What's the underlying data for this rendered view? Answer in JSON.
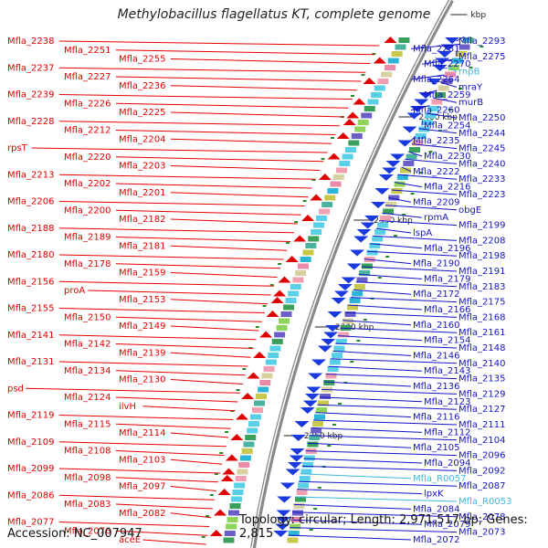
{
  "title": "Methylobacillus flagellatus KT, complete genome",
  "accession": "Accession: NC_007947",
  "topology": "Topology: circular; Length: 2,971,517 bp; Genes: 2,815",
  "colors": {
    "left": "#e60000",
    "right": "#1414c8",
    "rna": "#40b8e0",
    "backbone": "#8a8a8a",
    "tick": "#2a8a2a"
  },
  "ticks": [
    "kbp",
    "2400 kbp",
    "2350 kbp",
    "2300 kbp",
    "2250 kbp"
  ],
  "left_labels": [
    "Mfla_2238",
    "Mfla_2251",
    "Mfla_2255",
    "Mfla_2237",
    "Mfla_2227",
    "Mfla_2236",
    "Mfla_2239",
    "Mfla_2226",
    "Mfla_2225",
    "Mfla_2228",
    "Mfla_2212",
    "Mfla_2204",
    "rpsT",
    "Mfla_2220",
    "Mfla_2203",
    "Mfla_2213",
    "Mfla_2202",
    "Mfla_2201",
    "Mfla_2206",
    "Mfla_2200",
    "Mfla_2182",
    "Mfla_2188",
    "Mfla_2189",
    "Mfla_2181",
    "Mfla_2180",
    "Mfla_2178",
    "Mfla_2159",
    "Mfla_2156",
    "proA",
    "Mfla_2153",
    "Mfla_2155",
    "Mfla_2150",
    "Mfla_2149",
    "Mfla_2141",
    "Mfla_2142",
    "Mfla_2139",
    "Mfla_2131",
    "Mfla_2134",
    "Mfla_2130",
    "psd",
    "Mfla_2124",
    "ilvH",
    "Mfla_2119",
    "Mfla_2115",
    "Mfla_2114",
    "Mfla_2109",
    "Mfla_2108",
    "Mfla_2103",
    "Mfla_2099",
    "Mfla_2098",
    "Mfla_2097",
    "Mfla_2086",
    "Mfla_2083",
    "Mfla_2082",
    "Mfla_2077",
    "Mfla_2076",
    "aceE"
  ],
  "right_labels": [
    "Mfla_2293",
    "Mfla_2281",
    "Mfla_2275",
    "Mfla_2270",
    "rnpB",
    "Mfla_2264",
    "mraY",
    "Mfla_2259",
    "murB",
    "Mfla_2260",
    "Mfla_2250",
    "Mfla_2254",
    "Mfla_2244",
    "Mfla_2235",
    "Mfla_2245",
    "Mfla_2230",
    "Mfla_2240",
    "Mfla_2222",
    "Mfla_2233",
    "Mfla_2216",
    "Mfla_2223",
    "Mfla_2209",
    "obgE",
    "rpmA",
    "Mfla_2199",
    "lspA",
    "Mfla_2208",
    "Mfla_2196",
    "Mfla_2198",
    "Mfla_2190",
    "Mfla_2191",
    "Mfla_2179",
    "Mfla_2183",
    "Mfla_2172",
    "Mfla_2175",
    "Mfla_2166",
    "Mfla_2168",
    "Mfla_2160",
    "Mfla_2161",
    "Mfla_2154",
    "Mfla_2148",
    "Mfla_2146",
    "Mfla_2140",
    "Mfla_2143",
    "Mfla_2135",
    "Mfla_2136",
    "Mfla_2129",
    "Mfla_2123",
    "Mfla_2127",
    "Mfla_2116",
    "Mfla_2111",
    "Mfla_2112",
    "Mfla_2104",
    "Mfla_2105",
    "Mfla_2096",
    "Mfla_2094",
    "Mfla_2092",
    "Mfla_R0057",
    "Mfla_2087",
    "lpxK",
    "Mfla_R0053",
    "Mfla_2084",
    "Mfla_2078",
    "Mfla_2079",
    "Mfla_2073",
    "Mfla_2072"
  ],
  "rna_labels": [
    "rnpB",
    "Mfla_R0057",
    "Mfla_R0053"
  ]
}
